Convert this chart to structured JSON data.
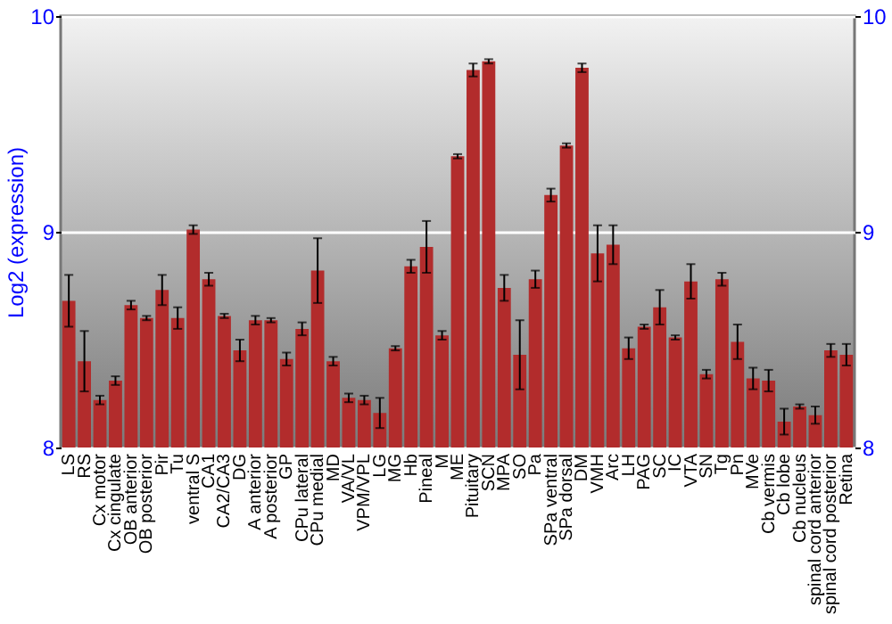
{
  "chart_data": {
    "type": "bar",
    "ylabel": "Log2 (expression)",
    "categories": [
      "LS",
      "RS",
      "Cx motor",
      "Cx cingulate",
      "OB anterior",
      "OB posterior",
      "Pir",
      "Tu",
      "ventral S",
      "CA1",
      "CA2/CA3",
      "DG",
      "A anterior",
      "A posterior",
      "GP",
      "CPu lateral",
      "CPu medial",
      "MD",
      "VA/VL",
      "VPM/VPL",
      "LG",
      "MG",
      "Hb",
      "Pineal",
      "M",
      "ME",
      "Pituitary",
      "SCN",
      "MPA",
      "SO",
      "Pa",
      "SPa ventral",
      "SPa dorsal",
      "DM",
      "VMH",
      "Arc",
      "LH",
      "PAG",
      "SC",
      "IC",
      "VTA",
      "SN",
      "Tg",
      "Pn",
      "MVe",
      "Cb vermis",
      "Cb lobe",
      "Cb nucleus",
      "spinal cord anterior",
      "spinal cord posterior",
      "Retina"
    ],
    "values": [
      8.68,
      8.4,
      8.22,
      8.31,
      8.66,
      8.6,
      8.73,
      8.6,
      9.01,
      8.78,
      8.61,
      8.45,
      8.59,
      8.59,
      8.41,
      8.55,
      8.82,
      8.4,
      8.23,
      8.22,
      8.16,
      8.46,
      8.84,
      8.93,
      8.52,
      9.35,
      9.75,
      9.79,
      8.74,
      8.43,
      8.78,
      9.17,
      9.4,
      9.76,
      8.9,
      8.94,
      8.46,
      8.56,
      8.65,
      8.51,
      8.77,
      8.34,
      8.78,
      8.49,
      8.32,
      8.31,
      8.12,
      8.19,
      8.15,
      8.45,
      8.43
    ],
    "errors": [
      0.12,
      0.14,
      0.02,
      0.02,
      0.02,
      0.01,
      0.07,
      0.05,
      0.02,
      0.03,
      0.01,
      0.05,
      0.02,
      0.01,
      0.03,
      0.03,
      0.15,
      0.02,
      0.02,
      0.02,
      0.07,
      0.01,
      0.03,
      0.12,
      0.02,
      0.01,
      0.03,
      0.01,
      0.06,
      0.16,
      0.04,
      0.03,
      0.01,
      0.02,
      0.13,
      0.09,
      0.05,
      0.01,
      0.08,
      0.01,
      0.08,
      0.02,
      0.03,
      0.08,
      0.05,
      0.05,
      0.06,
      0.01,
      0.04,
      0.03,
      0.05
    ],
    "color": "#b22c2c",
    "ylim": [
      8,
      10
    ],
    "yticks": [
      8,
      9,
      10
    ],
    "y2lim": [
      8,
      10
    ],
    "y2ticks": [
      8,
      9,
      10
    ],
    "grid": "y"
  }
}
